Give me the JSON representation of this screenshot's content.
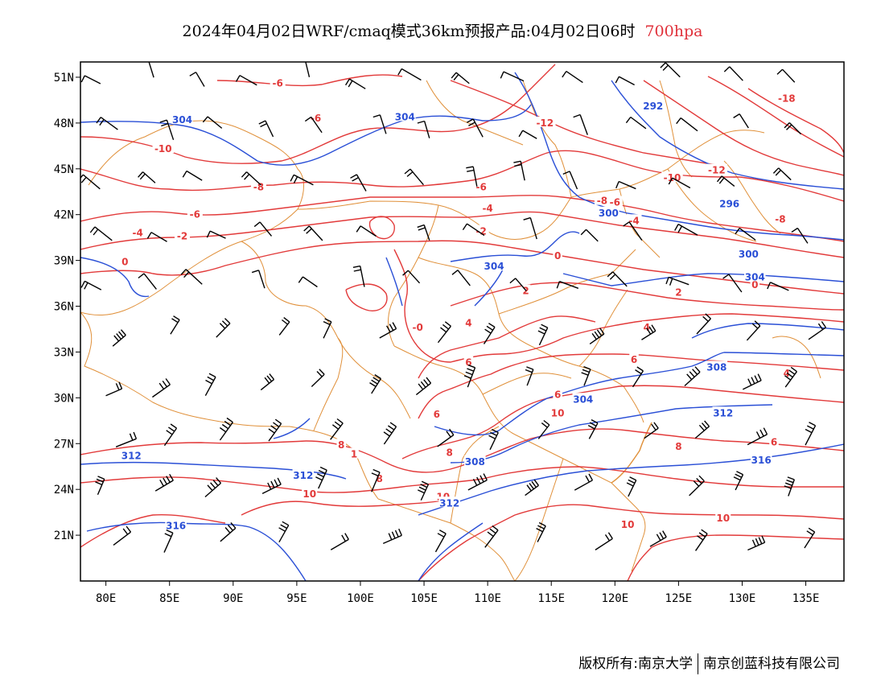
{
  "title": {
    "main": "2024年04月02日WRF/cmaq模式36km预报产品:04月02日06时",
    "level": "700hpa"
  },
  "axes": {
    "lon_labels": [
      "80E",
      "85E",
      "90E",
      "95E",
      "100E",
      "105E",
      "110E",
      "115E",
      "120E",
      "125E",
      "130E",
      "135E"
    ],
    "lat_labels": [
      "21N",
      "24N",
      "27N",
      "30N",
      "33N",
      "36N",
      "39N",
      "42N",
      "45N",
      "48N",
      "51N"
    ]
  },
  "map_extent": {
    "lon_min": 78,
    "lon_max": 138,
    "lat_min": 18,
    "lat_max": 52
  },
  "colors": {
    "temperature": "#e23a3a",
    "height": "#2a4fd6",
    "boundary": "#e0903a",
    "barb": "#000000",
    "level_text": "#e0303a"
  },
  "temperature_labels": [
    {
      "text": "-6",
      "lon": 93.5,
      "lat": 50.6
    },
    {
      "text": "-6",
      "lon": 96.5,
      "lat": 48.3
    },
    {
      "text": "-10",
      "lon": 84.5,
      "lat": 46.3
    },
    {
      "text": "-12",
      "lon": 114.5,
      "lat": 48.0
    },
    {
      "text": "-18",
      "lon": 133.5,
      "lat": 49.6
    },
    {
      "text": "-8",
      "lon": 92,
      "lat": 43.8
    },
    {
      "text": "-6",
      "lon": 109.5,
      "lat": 43.8
    },
    {
      "text": "-6",
      "lon": 87,
      "lat": 42.0
    },
    {
      "text": "-4",
      "lon": 110,
      "lat": 42.4
    },
    {
      "text": "-4",
      "lon": 82.5,
      "lat": 40.8
    },
    {
      "text": "-2",
      "lon": 86,
      "lat": 40.6
    },
    {
      "text": "-2",
      "lon": 109.5,
      "lat": 40.9
    },
    {
      "text": "0",
      "lon": 81.5,
      "lat": 38.9
    },
    {
      "text": "-0",
      "lon": 104.5,
      "lat": 34.6
    },
    {
      "text": "-8",
      "lon": 119,
      "lat": 42.9
    },
    {
      "text": "-10",
      "lon": 124.5,
      "lat": 44.4
    },
    {
      "text": "-12",
      "lon": 128,
      "lat": 44.9
    },
    {
      "text": "-6",
      "lon": 120,
      "lat": 42.8
    },
    {
      "text": "-4",
      "lon": 121.5,
      "lat": 41.6
    },
    {
      "text": "-8",
      "lon": 133,
      "lat": 41.7
    },
    {
      "text": "0",
      "lon": 115.5,
      "lat": 39.3
    },
    {
      "text": "2",
      "lon": 113,
      "lat": 37.0
    },
    {
      "text": "2",
      "lon": 125,
      "lat": 36.9
    },
    {
      "text": "0",
      "lon": 131,
      "lat": 37.4
    },
    {
      "text": "4",
      "lon": 108.5,
      "lat": 34.9
    },
    {
      "text": "4",
      "lon": 122.5,
      "lat": 34.6
    },
    {
      "text": "6",
      "lon": 108.5,
      "lat": 32.3
    },
    {
      "text": "6",
      "lon": 121.5,
      "lat": 32.5
    },
    {
      "text": "4",
      "lon": 133.5,
      "lat": 31.6
    },
    {
      "text": "6",
      "lon": 115.5,
      "lat": 30.2
    },
    {
      "text": "6",
      "lon": 106,
      "lat": 28.9
    },
    {
      "text": "10",
      "lon": 115.5,
      "lat": 29.0
    },
    {
      "text": "8",
      "lon": 98.5,
      "lat": 26.9
    },
    {
      "text": "8",
      "lon": 107,
      "lat": 26.4
    },
    {
      "text": "8",
      "lon": 125,
      "lat": 26.8
    },
    {
      "text": "6",
      "lon": 132.5,
      "lat": 27.1
    },
    {
      "text": "8",
      "lon": 101.5,
      "lat": 24.7
    },
    {
      "text": "10",
      "lon": 96,
      "lat": 23.7
    },
    {
      "text": "10",
      "lon": 106.5,
      "lat": 23.5
    },
    {
      "text": "10",
      "lon": 121,
      "lat": 21.7
    },
    {
      "text": "10",
      "lon": 128.5,
      "lat": 22.1
    },
    {
      "text": "1",
      "lon": 99.5,
      "lat": 26.3
    }
  ],
  "height_labels": [
    {
      "text": "304",
      "lon": 86,
      "lat": 48.2
    },
    {
      "text": "304",
      "lon": 103.5,
      "lat": 48.4
    },
    {
      "text": "292",
      "lon": 123,
      "lat": 49.1
    },
    {
      "text": "296",
      "lon": 129,
      "lat": 42.7
    },
    {
      "text": "300",
      "lon": 119.5,
      "lat": 42.1
    },
    {
      "text": "300",
      "lon": 130.5,
      "lat": 39.4
    },
    {
      "text": "304",
      "lon": 110.5,
      "lat": 38.6
    },
    {
      "text": "304",
      "lon": 131,
      "lat": 37.9
    },
    {
      "text": "308",
      "lon": 128,
      "lat": 32.0
    },
    {
      "text": "304",
      "lon": 117.5,
      "lat": 29.9
    },
    {
      "text": "312",
      "lon": 128.5,
      "lat": 29.0
    },
    {
      "text": "308",
      "lon": 109,
      "lat": 25.8
    },
    {
      "text": "316",
      "lon": 131.5,
      "lat": 25.9
    },
    {
      "text": "312",
      "lon": 82,
      "lat": 26.2
    },
    {
      "text": "312",
      "lon": 95.5,
      "lat": 24.9
    },
    {
      "text": "312",
      "lon": 107,
      "lat": 23.1
    },
    {
      "text": "316",
      "lon": 85.5,
      "lat": 21.6
    }
  ],
  "footer": {
    "copyright": "版权所有:南京大学",
    "company": "南京创蓝科技有限公司"
  }
}
